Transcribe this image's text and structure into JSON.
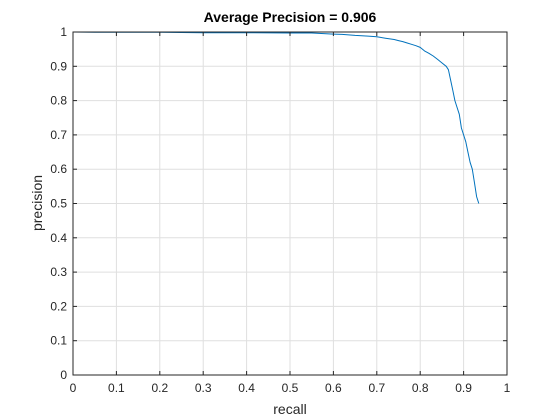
{
  "chart_data": {
    "type": "line",
    "title": "Average Precision = 0.906",
    "xlabel": "recall",
    "ylabel": "precision",
    "xlim": [
      0,
      1
    ],
    "ylim": [
      0,
      1
    ],
    "xticks": [
      "0",
      "0.1",
      "0.2",
      "0.3",
      "0.4",
      "0.5",
      "0.6",
      "0.7",
      "0.8",
      "0.9",
      "1"
    ],
    "yticks": [
      "0",
      "0.1",
      "0.2",
      "0.3",
      "0.4",
      "0.5",
      "0.6",
      "0.7",
      "0.8",
      "0.9",
      "1"
    ],
    "grid": true,
    "line_color": "#0072BD",
    "series": [
      {
        "x": [
          0.0,
          0.05,
          0.1,
          0.2,
          0.3,
          0.4,
          0.5,
          0.55,
          0.6,
          0.62,
          0.65,
          0.68,
          0.7,
          0.72,
          0.74,
          0.75,
          0.76,
          0.77,
          0.78,
          0.79,
          0.8,
          0.81,
          0.82,
          0.83,
          0.84,
          0.85,
          0.86,
          0.865,
          0.87,
          0.875,
          0.88,
          0.885,
          0.89,
          0.895,
          0.9,
          0.905,
          0.91,
          0.915,
          0.92,
          0.925,
          0.93,
          0.935
        ],
        "y": [
          1.0,
          0.999,
          0.999,
          0.999,
          0.998,
          0.998,
          0.997,
          0.997,
          0.994,
          0.993,
          0.99,
          0.988,
          0.986,
          0.982,
          0.978,
          0.975,
          0.972,
          0.968,
          0.964,
          0.96,
          0.955,
          0.945,
          0.938,
          0.93,
          0.92,
          0.91,
          0.9,
          0.89,
          0.86,
          0.83,
          0.8,
          0.78,
          0.76,
          0.72,
          0.7,
          0.68,
          0.65,
          0.62,
          0.6,
          0.56,
          0.52,
          0.5
        ]
      }
    ]
  }
}
